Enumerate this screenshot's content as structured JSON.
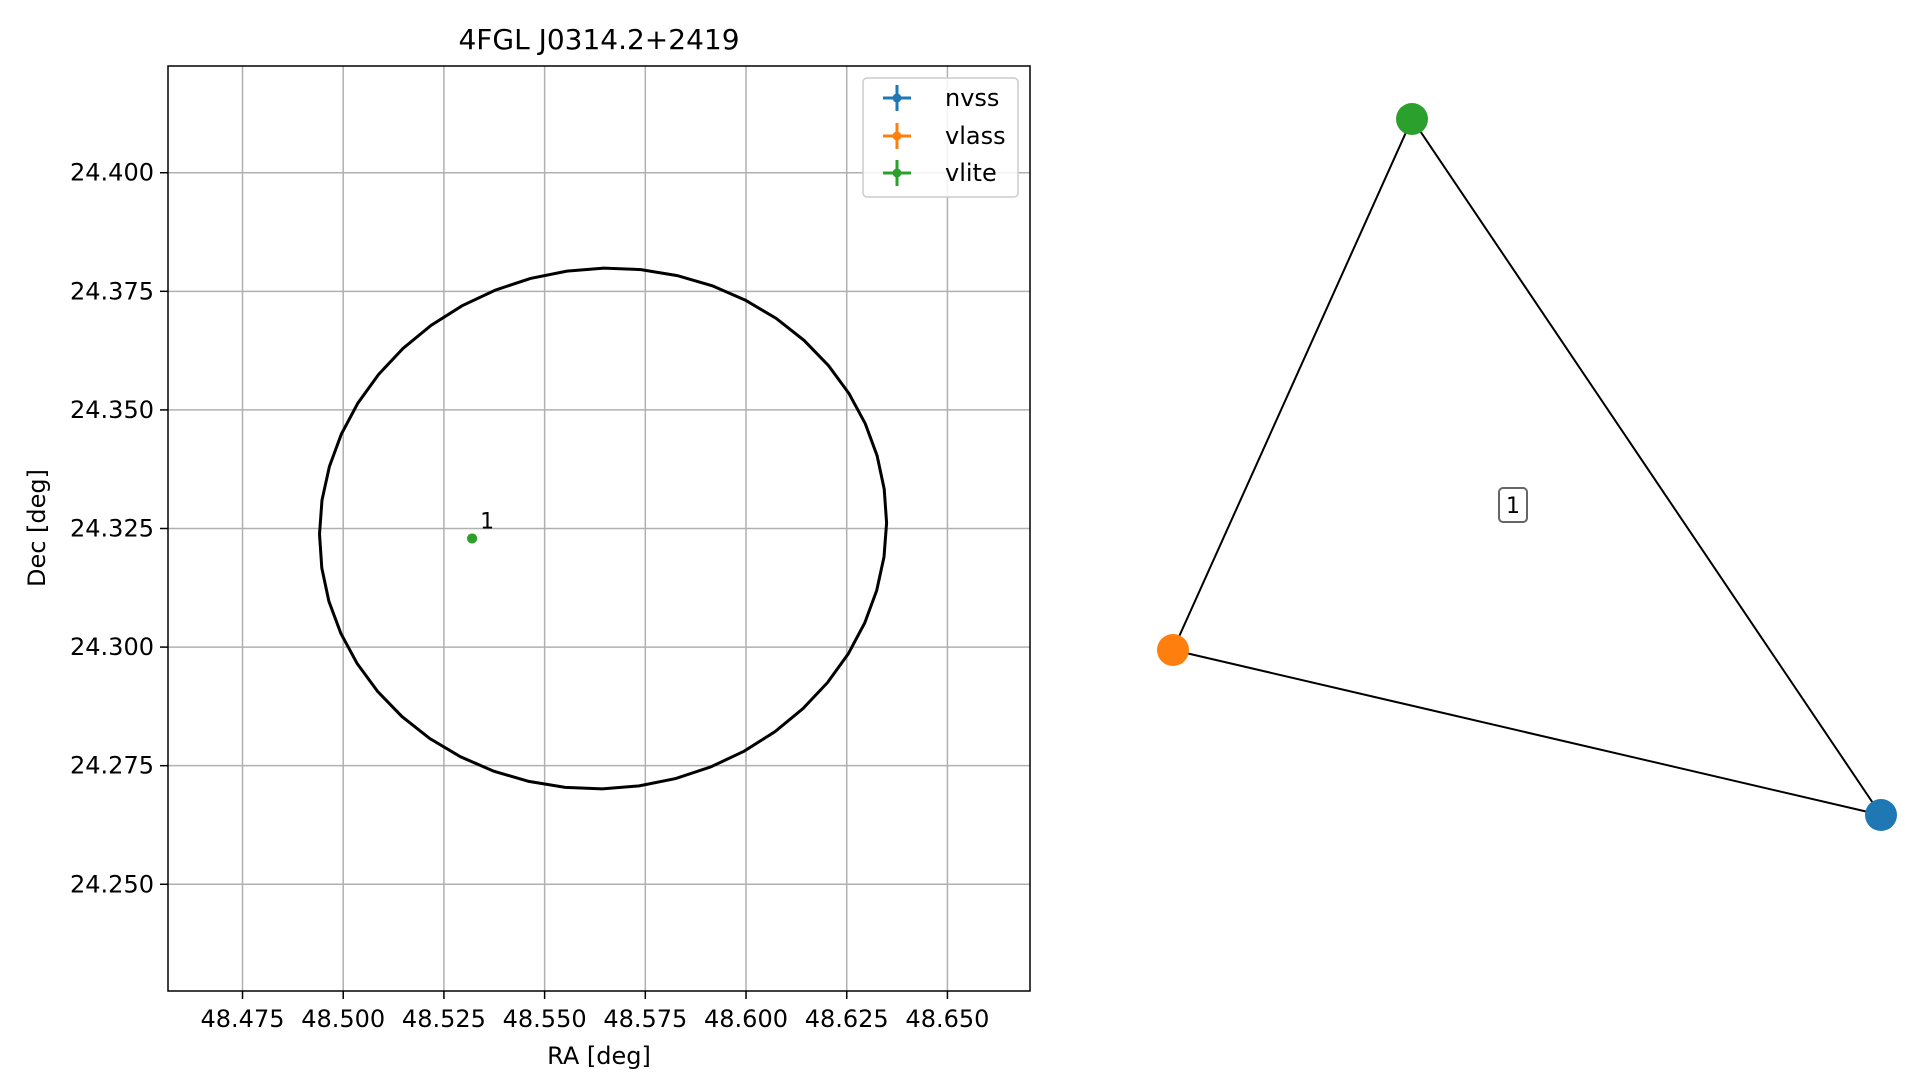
{
  "chart_data": [
    {
      "type": "scatter",
      "title": "4FGL J0314.2+2419",
      "xlabel": "RA [deg]",
      "ylabel": "Dec [deg]",
      "xlim": [
        48.4565,
        48.6705
      ],
      "ylim": [
        24.2275,
        24.4225
      ],
      "x_ticks": [
        48.475,
        48.5,
        48.525,
        48.55,
        48.575,
        48.6,
        48.625,
        48.65
      ],
      "x_tick_labels": [
        "48.475",
        "48.500",
        "48.525",
        "48.550",
        "48.575",
        "48.600",
        "48.625",
        "48.650"
      ],
      "y_ticks": [
        24.25,
        24.275,
        24.3,
        24.325,
        24.35,
        24.375,
        24.4
      ],
      "y_tick_labels": [
        "24.250",
        "24.275",
        "24.300",
        "24.325",
        "24.350",
        "24.375",
        "24.400"
      ],
      "grid": true,
      "legend_position": "top-right",
      "series": [
        {
          "name": "nvss",
          "color": "#1f77b4",
          "points": [
            {
              "x": 48.532,
              "y": 24.3229
            }
          ]
        },
        {
          "name": "vlass",
          "color": "#ff7f0e",
          "points": [
            {
              "x": 48.532,
              "y": 24.3229
            }
          ]
        },
        {
          "name": "vlite",
          "color": "#2ca02c",
          "points": [
            {
              "x": 48.532,
              "y": 24.3229
            }
          ]
        }
      ],
      "point_label": "1",
      "uncertainty_ellipse": {
        "center_x": 48.5645,
        "center_y": 24.325,
        "semi_major_ra": 0.0705,
        "semi_major_dec": 0.0548,
        "angle_deg": -8,
        "color": "#000000"
      }
    },
    {
      "type": "graph",
      "nodes": [
        {
          "id": "vlite",
          "color": "#2ca02c"
        },
        {
          "id": "vlass",
          "color": "#ff7f0e"
        },
        {
          "id": "nvss",
          "color": "#1f77b4"
        }
      ],
      "edges": [
        [
          "vlite",
          "vlass"
        ],
        [
          "vlite",
          "nvss"
        ],
        [
          "vlass",
          "nvss"
        ]
      ],
      "component_label": "1"
    }
  ]
}
